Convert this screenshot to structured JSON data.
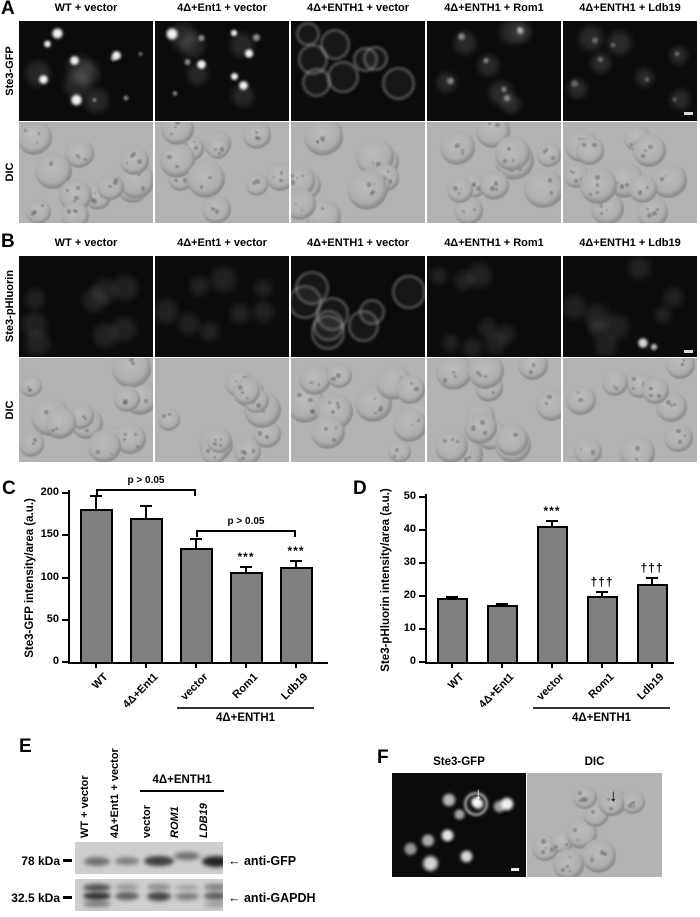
{
  "icons": {
    "left_arrow": "←",
    "down_arrow": "↓"
  },
  "panels": {
    "A": {
      "label": "A",
      "row_labels": [
        "Ste3-GFP",
        "DIC"
      ],
      "columns": [
        "WT + vector",
        "4Δ+Ent1 + vector",
        "4Δ+ENTH1 + vector",
        "4Δ+ENTH1 + Rom1",
        "4Δ+ENTH1 + Ldb19"
      ]
    },
    "B": {
      "label": "B",
      "row_labels": [
        "Ste3-pHluorin",
        "DIC"
      ],
      "columns": [
        "WT + vector",
        "4Δ+Ent1 + vector",
        "4Δ+ENTH1 + vector",
        "4Δ+ENTH1 + Rom1",
        "4Δ+ENTH1 + Ldb19"
      ]
    },
    "C": {
      "label": "C"
    },
    "D": {
      "label": "D"
    },
    "E": {
      "label": "E",
      "lane_labels": [
        "WT + vector",
        "4Δ+Ent1 + vector"
      ],
      "group": {
        "label": "4Δ+ENTH1",
        "lanes": [
          "vector",
          "ROM1",
          "LDB19"
        ]
      },
      "markers": [
        "78 kDa",
        "32.5 kDa"
      ],
      "blot_labels": [
        "anti-GFP",
        "anti-GAPDH"
      ]
    },
    "F": {
      "label": "F",
      "headers": [
        "Ste3-GFP",
        "DIC"
      ]
    }
  },
  "chart_data": [
    {
      "id": "C",
      "type": "bar",
      "categories": [
        "WT",
        "4Δ+Ent1",
        "vector",
        "Rom1",
        "Ldb19"
      ],
      "values": [
        181,
        170,
        135,
        106,
        112
      ],
      "errors": [
        15,
        15,
        11,
        6,
        8
      ],
      "title": "",
      "xlabel": "",
      "ylabel": "Ste3-GFP intensity/area (a.u.)",
      "ylim": [
        0,
        200
      ],
      "yticks": [
        0,
        50,
        100,
        150,
        200
      ],
      "grid": false,
      "legend_position": "none",
      "bar_color": "#7f7f7f",
      "significance": [
        "",
        "",
        "",
        "***",
        "***"
      ],
      "brackets": [
        {
          "from": 0,
          "to": 2,
          "label": "p > 0.05",
          "y": 205
        },
        {
          "from": 2,
          "to": 4,
          "label": "p > 0.05",
          "y": 156
        }
      ],
      "group_label": "4Δ+ENTH1",
      "group_from": 2,
      "group_to": 4
    },
    {
      "id": "D",
      "type": "bar",
      "categories": [
        "WT",
        "4Δ+Ent1",
        "vector",
        "Rom1",
        "Ldb19"
      ],
      "values": [
        19.3,
        17.3,
        41.2,
        20.1,
        23.7
      ],
      "errors": [
        0.5,
        0.4,
        1.6,
        1.0,
        1.8
      ],
      "title": "",
      "xlabel": "",
      "ylabel": "Ste3-pHluorin intensity/area (a.u.)",
      "ylim": [
        0,
        50
      ],
      "yticks": [
        0,
        10,
        20,
        30,
        40,
        50
      ],
      "grid": false,
      "legend_position": "none",
      "bar_color": "#7f7f7f",
      "significance": [
        "",
        "",
        "***",
        "†††",
        "†††"
      ],
      "brackets": [],
      "group_label": "4Δ+ENTH1",
      "group_from": 2,
      "group_to": 4
    }
  ]
}
